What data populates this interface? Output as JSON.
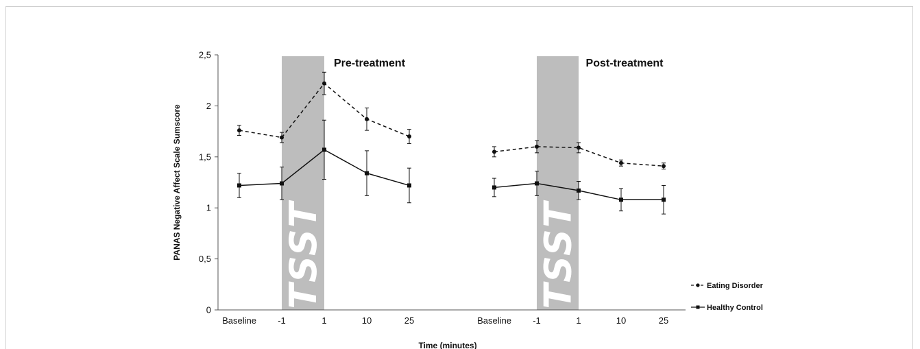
{
  "chart_data": {
    "type": "line",
    "ylabel": "PANAS Negative Affect Scale Sumscore",
    "xlabel": "Time (minutes)",
    "ylim": [
      0,
      2.5
    ],
    "yticks": [
      "0",
      "0,5",
      "1",
      "1,5",
      "2",
      "2,5"
    ],
    "stress_band_label": "TSST",
    "legend_position": "right",
    "panels": [
      {
        "title": "Pre-treatment",
        "categories": [
          "Baseline",
          "-1",
          "1",
          "10",
          "25"
        ],
        "series": [
          {
            "name": "Eating Disorder",
            "style": "dashed",
            "marker": "circle",
            "values": [
              1.76,
              1.69,
              2.22,
              1.87,
              1.7
            ],
            "errors": [
              0.05,
              0.05,
              0.11,
              0.11,
              0.07
            ]
          },
          {
            "name": "Healthy Control",
            "style": "solid",
            "marker": "square",
            "values": [
              1.22,
              1.24,
              1.57,
              1.34,
              1.22
            ],
            "errors": [
              0.12,
              0.16,
              0.29,
              0.22,
              0.17
            ]
          }
        ]
      },
      {
        "title": "Post-treatment",
        "categories": [
          "Baseline",
          "-1",
          "1",
          "10",
          "25"
        ],
        "series": [
          {
            "name": "Eating Disorder",
            "style": "dashed",
            "marker": "circle",
            "values": [
              1.55,
              1.6,
              1.59,
              1.44,
              1.41
            ],
            "errors": [
              0.05,
              0.06,
              0.05,
              0.03,
              0.03
            ]
          },
          {
            "name": "Healthy Control",
            "style": "solid",
            "marker": "square",
            "values": [
              1.2,
              1.24,
              1.17,
              1.08,
              1.08
            ],
            "errors": [
              0.09,
              0.12,
              0.09,
              0.11,
              0.14
            ]
          }
        ]
      }
    ],
    "legend": [
      {
        "label": "Eating Disorder",
        "style": "dashed",
        "marker": "circle"
      },
      {
        "label": "Healthy Control",
        "style": "solid",
        "marker": "square"
      }
    ]
  }
}
